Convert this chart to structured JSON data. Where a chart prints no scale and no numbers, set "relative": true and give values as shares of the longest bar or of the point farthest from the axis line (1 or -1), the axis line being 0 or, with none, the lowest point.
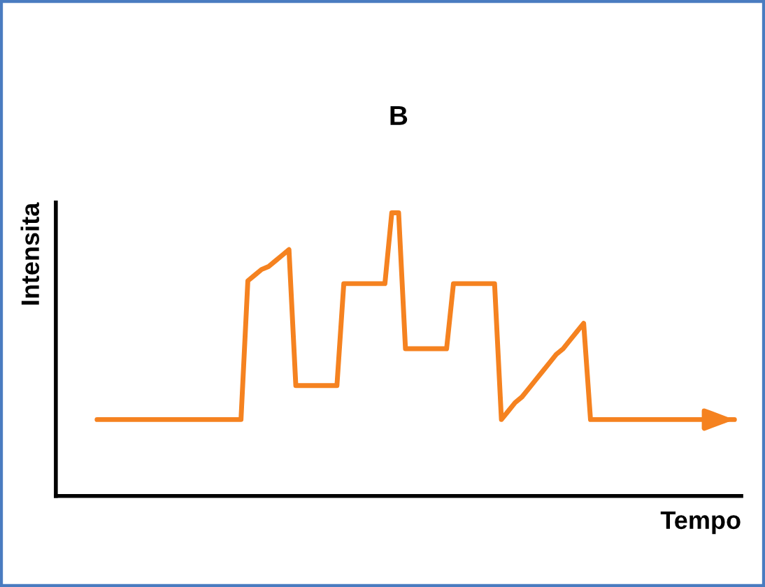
{
  "chart_data": {
    "type": "line",
    "title": "B",
    "xlabel": "Tempo",
    "ylabel": "Intensita",
    "relative": true,
    "marker": "none",
    "line_style": "solid",
    "categories": [
      null,
      null,
      null,
      null,
      null,
      null,
      null,
      null,
      null,
      null,
      null,
      null,
      null,
      null,
      null,
      null,
      null,
      null,
      null,
      null,
      null,
      null,
      null,
      null,
      null,
      null,
      null,
      null,
      null,
      null,
      null,
      null,
      null,
      null,
      null,
      null,
      null,
      null,
      null,
      null,
      null,
      null,
      null,
      null,
      null,
      null,
      null,
      null,
      null,
      null,
      null,
      null,
      null,
      null,
      null,
      null,
      null,
      null,
      null,
      null,
      null,
      null,
      null,
      null,
      null,
      null,
      null,
      null,
      null,
      null,
      null,
      null,
      null,
      null,
      null,
      null,
      null,
      null,
      null,
      null,
      null,
      null,
      null,
      null,
      null,
      null,
      null,
      null,
      null,
      null,
      null,
      null,
      null,
      null
    ],
    "series": [
      {
        "color": "#f58220",
        "values": [
          0.27,
          0.27,
          0.27,
          0.27,
          0.27,
          0.27,
          0.27,
          0.27,
          0.27,
          0.27,
          0.27,
          0.27,
          0.27,
          0.27,
          0.27,
          0.27,
          0.27,
          0.27,
          0.27,
          0.27,
          0.27,
          0.27,
          0.76,
          0.78,
          0.8,
          0.81,
          0.83,
          0.85,
          0.87,
          0.39,
          0.39,
          0.39,
          0.39,
          0.39,
          0.39,
          0.39,
          0.75,
          0.75,
          0.75,
          0.75,
          0.75,
          0.75,
          0.75,
          1,
          1,
          0.52,
          0.52,
          0.52,
          0.52,
          0.52,
          0.52,
          0.52,
          0.75,
          0.75,
          0.75,
          0.75,
          0.75,
          0.75,
          0.75,
          0.27,
          0.3,
          0.33,
          0.35,
          0.38,
          0.41,
          0.44,
          0.47,
          0.5,
          0.52,
          0.55,
          0.58,
          0.61,
          0.27,
          0.27,
          0.27,
          0.27,
          0.27,
          0.27,
          0.27,
          0.27,
          0.27,
          0.27,
          0.27,
          0.27,
          0.27,
          0.27,
          0.27,
          0.27,
          0.27,
          0.27,
          0.27,
          0.27,
          0.27,
          0.27
        ]
      }
    ]
  }
}
